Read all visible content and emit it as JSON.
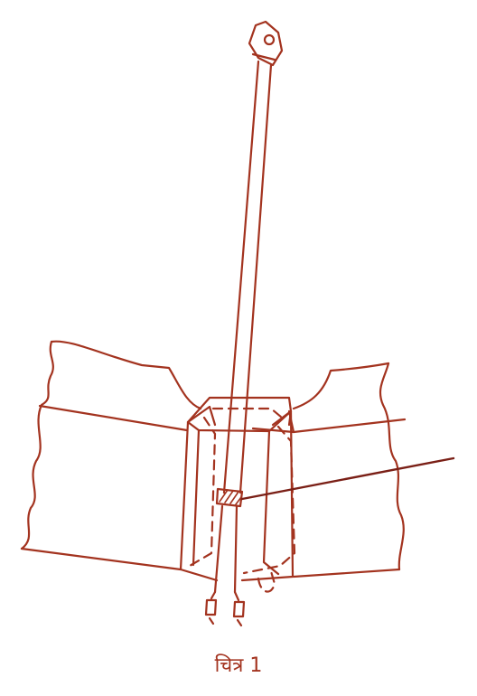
{
  "figure": {
    "caption": "चित्र 1",
    "ink_color": "#a3331f",
    "dark_ink_color": "#7a1f16"
  }
}
